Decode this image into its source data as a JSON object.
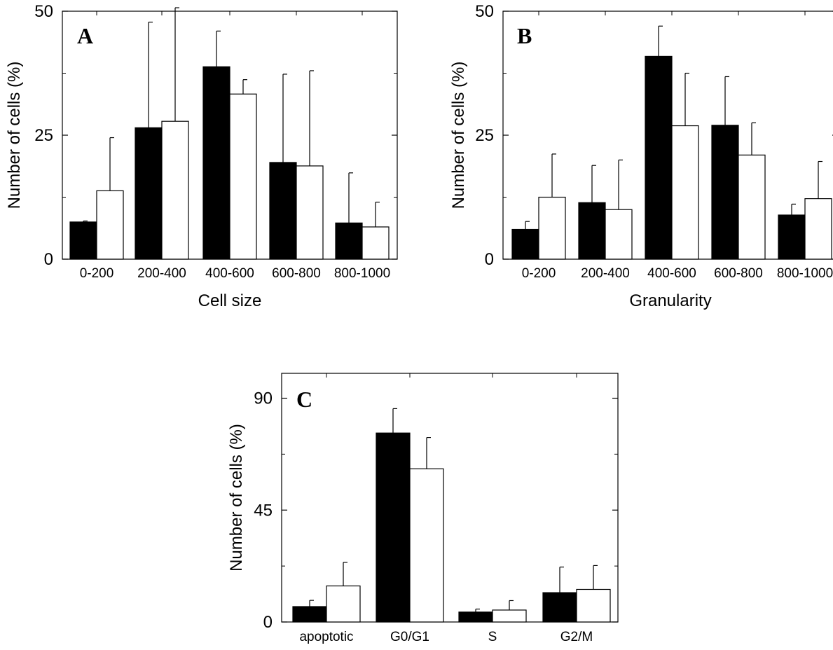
{
  "chart_data": [
    {
      "type": "bar",
      "panel_label": "A",
      "xlabel": "Cell size",
      "ylabel": "Number of cells (%)",
      "categories": [
        "0-200",
        "200-400",
        "400-600",
        "600-800",
        "800-1000"
      ],
      "ylim": [
        0,
        50
      ],
      "yticks": [
        "0",
        "25",
        "50"
      ],
      "grid": false,
      "legend": "none",
      "series": [
        {
          "color": "#000000",
          "values": [
            7.5,
            26.5,
            38.8,
            19.5,
            7.3
          ],
          "error": [
            0.2,
            21.3,
            7.2,
            17.8,
            10.1
          ]
        },
        {
          "color": "#ffffff",
          "values": [
            13.8,
            27.8,
            33.3,
            18.8,
            6.5
          ],
          "error": [
            10.7,
            22.9,
            2.9,
            19.2,
            5.0
          ]
        }
      ]
    },
    {
      "type": "bar",
      "panel_label": "B",
      "xlabel": "Granularity",
      "ylabel": "Number of cells (%)",
      "categories": [
        "0-200",
        "200-400",
        "400-600",
        "600-800",
        "800-1000"
      ],
      "ylim": [
        0,
        50
      ],
      "yticks": [
        "0",
        "25",
        "50"
      ],
      "grid": false,
      "legend": "none",
      "series": [
        {
          "color": "#000000",
          "values": [
            6.0,
            11.4,
            40.9,
            27.0,
            8.9
          ],
          "error": [
            1.6,
            7.5,
            6.1,
            9.8,
            2.2
          ]
        },
        {
          "color": "#ffffff",
          "values": [
            12.5,
            10.0,
            26.9,
            21.0,
            12.2
          ],
          "error": [
            8.7,
            10.0,
            10.6,
            6.5,
            7.5
          ]
        }
      ]
    },
    {
      "type": "bar",
      "panel_label": "C",
      "xlabel": "",
      "ylabel": "Number of cells (%)",
      "categories": [
        "apoptotic",
        "G0/G1",
        "S",
        "G2/M"
      ],
      "ylim": [
        0,
        100
      ],
      "yticks": [
        "0",
        "45",
        "90"
      ],
      "grid": false,
      "legend": "none",
      "series": [
        {
          "color": "#000000",
          "values": [
            6.2,
            76.0,
            4.0,
            11.8
          ],
          "error": [
            2.5,
            9.8,
            1.2,
            10.3
          ]
        },
        {
          "color": "#ffffff",
          "values": [
            14.5,
            61.6,
            4.8,
            13.1
          ],
          "error": [
            9.5,
            12.6,
            3.8,
            9.6
          ]
        }
      ]
    }
  ]
}
